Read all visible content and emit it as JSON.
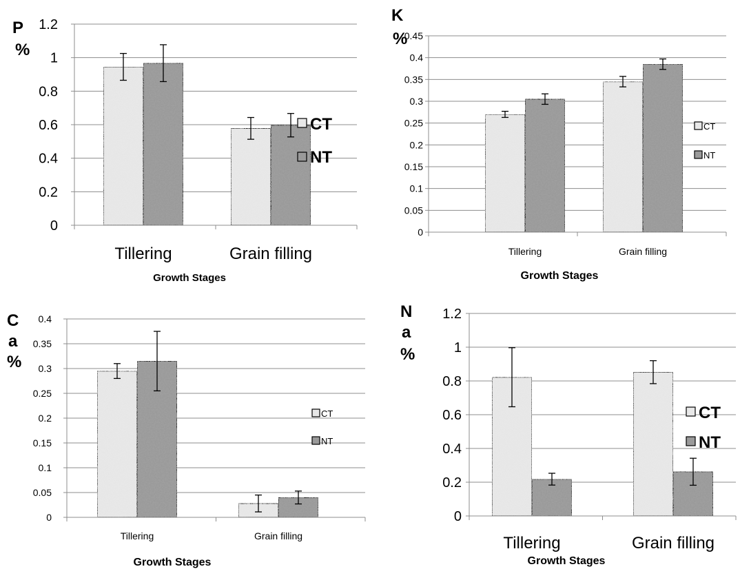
{
  "chart_data": [
    {
      "type": "bar",
      "title_lines": [
        "P",
        "%"
      ],
      "xlabel": "Growth Stages",
      "categories": [
        "Tillering",
        "Grain filling"
      ],
      "ylim": [
        0,
        1.2
      ],
      "yticks": [
        "0",
        "0.2",
        "0.4",
        "0.6",
        "0.8",
        "1",
        "1.2"
      ],
      "grid": true,
      "legend_position": "right",
      "series": [
        {
          "name": "CT",
          "values": [
            0.945,
            0.578
          ],
          "errors": [
            0.08,
            0.065
          ]
        },
        {
          "name": "NT",
          "values": [
            0.967,
            0.597
          ],
          "errors": [
            0.11,
            0.07
          ]
        }
      ]
    },
    {
      "type": "bar",
      "title_lines": [
        "K",
        "%"
      ],
      "xlabel": "Growth Stages",
      "categories": [
        "Tillering",
        "Grain filling"
      ],
      "ylim": [
        0,
        0.45
      ],
      "yticks": [
        "0",
        "0.05",
        "0.1",
        "0.15",
        "0.2",
        "0.25",
        "0.3",
        "0.35",
        "0.4",
        "0.45"
      ],
      "grid": true,
      "legend_position": "right",
      "series": [
        {
          "name": "CT",
          "values": [
            0.27,
            0.345
          ],
          "errors": [
            0.007,
            0.012
          ]
        },
        {
          "name": "NT",
          "values": [
            0.305,
            0.385
          ],
          "errors": [
            0.012,
            0.012
          ]
        }
      ]
    },
    {
      "type": "bar",
      "title_lines": [
        "C",
        "a",
        "%"
      ],
      "xlabel": "Growth Stages",
      "categories": [
        "Tillering",
        "Grain filling"
      ],
      "ylim": [
        0,
        0.4
      ],
      "yticks": [
        "0",
        "0.05",
        "0.1",
        "0.15",
        "0.2",
        "0.25",
        "0.3",
        "0.35",
        "0.4"
      ],
      "grid": true,
      "legend_position": "right",
      "series": [
        {
          "name": "CT",
          "values": [
            0.295,
            0.028
          ],
          "errors": [
            0.015,
            0.017
          ]
        },
        {
          "name": "NT",
          "values": [
            0.315,
            0.04
          ],
          "errors": [
            0.06,
            0.013
          ]
        }
      ]
    },
    {
      "type": "bar",
      "title_lines": [
        "N",
        "a",
        "%"
      ],
      "xlabel": "Growth Stages",
      "categories": [
        "Tillering",
        "Grain filling"
      ],
      "ylim": [
        0,
        1.2
      ],
      "yticks": [
        "0",
        "0.2",
        "0.4",
        "0.6",
        "0.8",
        "1",
        "1.2"
      ],
      "grid": true,
      "legend_position": "right",
      "series": [
        {
          "name": "CT",
          "values": [
            0.822,
            0.852
          ],
          "errors": [
            0.175,
            0.068
          ]
        },
        {
          "name": "NT",
          "values": [
            0.218,
            0.262
          ],
          "errors": [
            0.035,
            0.08
          ]
        }
      ]
    }
  ],
  "colors": {
    "ct_fill": "#e8e8e8",
    "nt_fill": "#9a9a9a",
    "grid": "#8c8c8c",
    "bar_edge": "#000000"
  }
}
